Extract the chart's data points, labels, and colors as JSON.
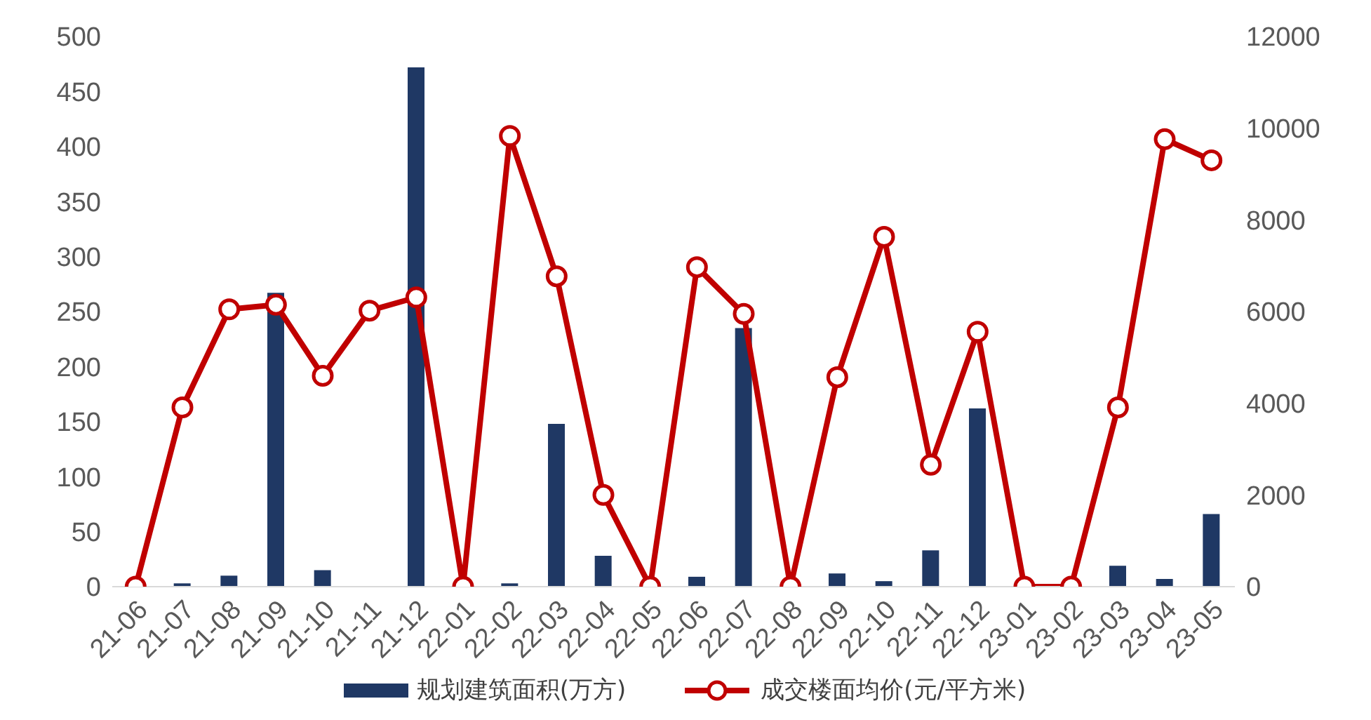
{
  "chart_data": {
    "type": "bar",
    "categories": [
      "21-06",
      "21-07",
      "21-08",
      "21-09",
      "21-10",
      "21-11",
      "21-12",
      "22-01",
      "22-02",
      "22-03",
      "22-04",
      "22-05",
      "22-06",
      "22-07",
      "22-08",
      "22-09",
      "22-10",
      "22-11",
      "22-12",
      "23-01",
      "23-02",
      "23-03",
      "23-04",
      "23-05"
    ],
    "series": [
      {
        "name": "规划建筑面积(万方)",
        "color": "#1f3864",
        "values": [
          0,
          3,
          10,
          267,
          15,
          0,
          472,
          0,
          3,
          148,
          28,
          0,
          9,
          235,
          0,
          12,
          5,
          33,
          162,
          0,
          0,
          19,
          7,
          66
        ]
      },
      {
        "name": "成交楼面均价(元/平方米)",
        "type": "line",
        "axis": "y2",
        "color": "#c00000",
        "marker": "circle",
        "values": [
          0,
          3910,
          6050,
          6150,
          4600,
          6020,
          6310,
          0,
          9830,
          6770,
          2000,
          0,
          6970,
          5950,
          0,
          4570,
          7630,
          2660,
          5560,
          0,
          0,
          3910,
          9760,
          9300
        ]
      }
    ],
    "ylim": [
      0,
      500
    ],
    "yticks": [
      0,
      50,
      100,
      150,
      200,
      250,
      300,
      350,
      400,
      450,
      500
    ],
    "y2lim": [
      0,
      12000
    ],
    "y2ticks": [
      0,
      2000,
      4000,
      6000,
      8000,
      10000,
      12000
    ],
    "grid": false,
    "legend": "bottom"
  }
}
